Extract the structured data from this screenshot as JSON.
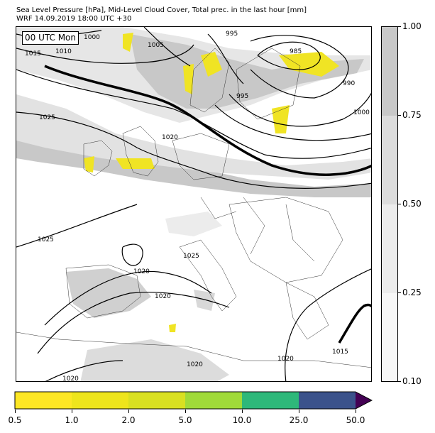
{
  "title": {
    "line1": "Sea Level Pressure [hPa], Mid-Level Cloud Cover, Total prec. in the last hour [mm]",
    "line2": "WRF 14.09.2019 18:00 UTC +30"
  },
  "time_label": "00 UTC Mon",
  "isobar_labels": [
    "1000",
    "1010",
    "1015",
    "1005",
    "995",
    "985",
    "990",
    "995",
    "1000",
    "1025",
    "1020",
    "1025",
    "1025",
    "1020",
    "1020",
    "1020",
    "1020",
    "1020",
    "1015"
  ],
  "cloud_cover_colorbar": {
    "tick_labels": [
      "1.00",
      "0.75",
      "0.50",
      "0.25",
      "0.10"
    ],
    "colors": [
      "#c8c8c8",
      "#dcdcdc",
      "#ececec",
      "#f7f7f7"
    ]
  },
  "precip_colorbar": {
    "tick_labels": [
      "0.5",
      "1.0",
      "2.0",
      "5.0",
      "10.0",
      "25.0",
      "50.0"
    ],
    "colors": [
      "#fde725",
      "#eee51c",
      "#d9e021",
      "#a0da39",
      "#2eb87a",
      "#3b528b",
      "#440154"
    ]
  }
}
